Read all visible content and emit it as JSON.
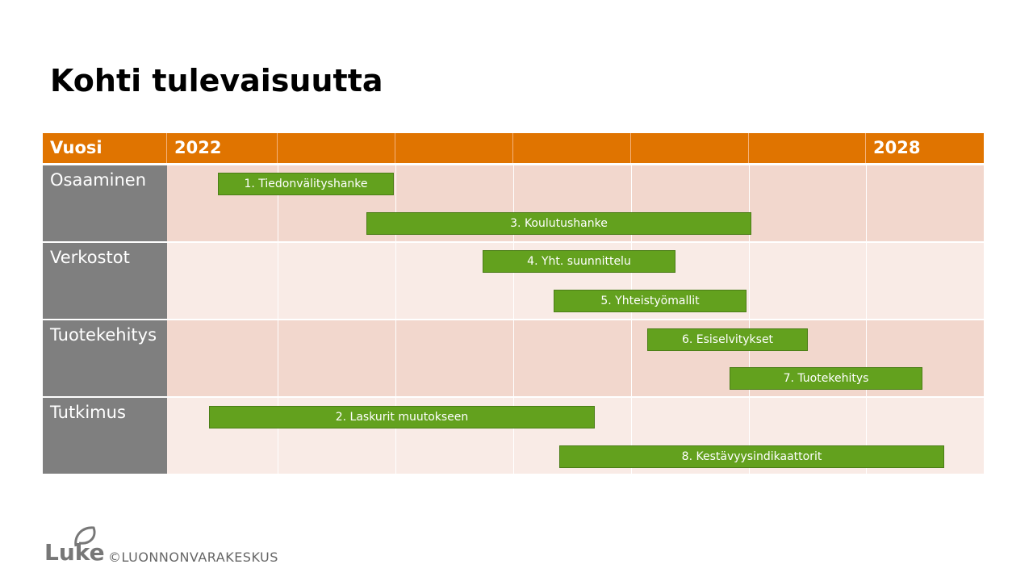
{
  "title": "Kohti tulevaisuutta",
  "table": {
    "header": {
      "label": "Vuosi",
      "first_year": "2022",
      "last_year": "2028"
    },
    "rows": [
      {
        "label": "Osaaminen",
        "bars": [
          "1. Tiedonvälityshanke",
          "3. Koulutushanke"
        ]
      },
      {
        "label": "Verkostot",
        "bars": [
          "4. Yht. suunnittelu",
          "5. Yhteistyömallit"
        ]
      },
      {
        "label": "Tuotekehitys",
        "bars": [
          "6. Esiselvitykset",
          "7. Tuotekehitys"
        ]
      },
      {
        "label": "Tutkimus",
        "bars": [
          "2. Laskurit muutokseen",
          "8. Kestävyysindikaattorit"
        ]
      }
    ]
  },
  "footer": {
    "logo": "Luke",
    "copyright": "©LUONNONVARAKESKUS"
  }
}
